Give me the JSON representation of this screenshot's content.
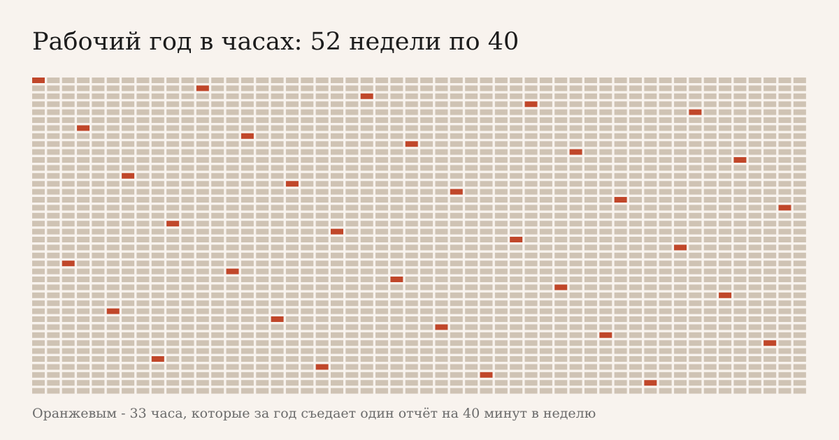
{
  "title": "Рабочий год в часах: 52 недели по 40",
  "caption": "Оранжевым - 33 часа, которые за год съедает один отчёт на 40 минут в неделю",
  "colors": {
    "background": "#f8f3ee",
    "cell": "#cfc3b4",
    "highlight": "#c0472a"
  },
  "chart_data": {
    "type": "heatmap",
    "weeks": 52,
    "hours_per_week": 40,
    "highlighted_hours": 33,
    "highlighted_cells": [
      [
        0,
        0
      ],
      [
        11,
        1
      ],
      [
        22,
        2
      ],
      [
        33,
        3
      ],
      [
        44,
        4
      ],
      [
        3,
        6
      ],
      [
        14,
        7
      ],
      [
        25,
        8
      ],
      [
        36,
        9
      ],
      [
        47,
        10
      ],
      [
        6,
        12
      ],
      [
        17,
        13
      ],
      [
        28,
        14
      ],
      [
        39,
        15
      ],
      [
        50,
        16
      ],
      [
        9,
        18
      ],
      [
        20,
        19
      ],
      [
        32,
        20
      ],
      [
        43,
        21
      ],
      [
        2,
        23
      ],
      [
        13,
        24
      ],
      [
        24,
        25
      ],
      [
        35,
        26
      ],
      [
        46,
        27
      ],
      [
        5,
        29
      ],
      [
        16,
        30
      ],
      [
        27,
        31
      ],
      [
        38,
        32
      ],
      [
        49,
        33
      ],
      [
        8,
        35
      ],
      [
        19,
        36
      ],
      [
        30,
        37
      ],
      [
        41,
        38
      ]
    ]
  }
}
